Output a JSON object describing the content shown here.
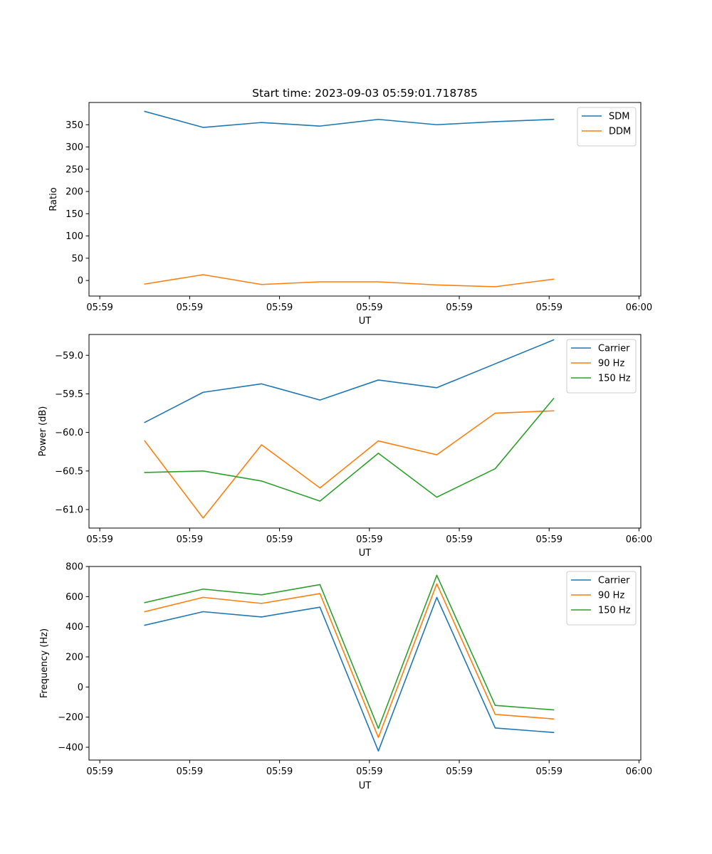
{
  "chart_data": [
    {
      "type": "line",
      "title": "Start time: 2023-09-03 05:59:01.718785",
      "xlabel": "UT",
      "ylabel": "Ratio",
      "x_ticks": [
        "05:59",
        "05:59",
        "05:59",
        "05:59",
        "05:59",
        "05:59",
        "06:00"
      ],
      "x_tick_positions": [
        0,
        1,
        2,
        3,
        4,
        5,
        6
      ],
      "xlim": [
        -0.12,
        6.02
      ],
      "x": [
        0.5,
        1.15,
        1.8,
        2.45,
        3.1,
        3.75,
        4.4,
        5.05
      ],
      "ylim": [
        -35,
        400
      ],
      "y_ticks": [
        0,
        50,
        100,
        150,
        200,
        250,
        300,
        350
      ],
      "legend": "top-right",
      "series": [
        {
          "name": "SDM",
          "color": "#1f77b4",
          "values": [
            380,
            344,
            355,
            347,
            362,
            350,
            357,
            362
          ]
        },
        {
          "name": "DDM",
          "color": "#ff7f0e",
          "values": [
            -8,
            13,
            -9,
            -3,
            -3,
            -10,
            -14,
            3
          ]
        }
      ]
    },
    {
      "type": "line",
      "title": "",
      "xlabel": "UT",
      "ylabel": "Power (dB)",
      "x_ticks": [
        "05:59",
        "05:59",
        "05:59",
        "05:59",
        "05:59",
        "05:59",
        "06:00"
      ],
      "x_tick_positions": [
        0,
        1,
        2,
        3,
        4,
        5,
        6
      ],
      "xlim": [
        -0.12,
        6.02
      ],
      "x": [
        0.5,
        1.15,
        1.8,
        2.45,
        3.1,
        3.75,
        4.4,
        5.05
      ],
      "ylim": [
        -61.24,
        -58.73
      ],
      "y_ticks": [
        -61.0,
        -60.5,
        -60.0,
        -59.5,
        -59.0
      ],
      "y_tick_labels": [
        "−61.0",
        "−60.5",
        "−60.0",
        "−59.5",
        "−59.0"
      ],
      "legend": "top-right",
      "series": [
        {
          "name": "Carrier",
          "color": "#1f77b4",
          "values": [
            -59.87,
            -59.48,
            -59.37,
            -59.58,
            -59.32,
            -59.42,
            -59.11,
            -58.8
          ]
        },
        {
          "name": "90 Hz",
          "color": "#ff7f0e",
          "values": [
            -60.11,
            -61.11,
            -60.16,
            -60.72,
            -60.11,
            -60.29,
            -59.75,
            -59.72
          ]
        },
        {
          "name": "150 Hz",
          "color": "#2ca02c",
          "values": [
            -60.52,
            -60.5,
            -60.63,
            -60.89,
            -60.27,
            -60.84,
            -60.47,
            -59.56
          ]
        }
      ]
    },
    {
      "type": "line",
      "title": "",
      "xlabel": "UT",
      "ylabel": "Frequency (Hz)",
      "x_ticks": [
        "05:59",
        "05:59",
        "05:59",
        "05:59",
        "05:59",
        "05:59",
        "06:00"
      ],
      "x_tick_positions": [
        0,
        1,
        2,
        3,
        4,
        5,
        6
      ],
      "xlim": [
        -0.12,
        6.02
      ],
      "x": [
        0.5,
        1.15,
        1.8,
        2.45,
        3.1,
        3.75,
        4.4,
        5.05
      ],
      "ylim": [
        -485,
        800
      ],
      "y_ticks": [
        -400,
        -200,
        0,
        200,
        400,
        600,
        800
      ],
      "y_tick_labels": [
        "−400",
        "−200",
        "0",
        "200",
        "400",
        "600",
        "800"
      ],
      "legend": "top-right",
      "series": [
        {
          "name": "Carrier",
          "color": "#1f77b4",
          "values": [
            410,
            500,
            465,
            530,
            -425,
            595,
            -272,
            -302
          ]
        },
        {
          "name": "90 Hz",
          "color": "#ff7f0e",
          "values": [
            500,
            595,
            555,
            620,
            -335,
            685,
            -182,
            -212
          ]
        },
        {
          "name": "150 Hz",
          "color": "#2ca02c",
          "values": [
            560,
            650,
            612,
            680,
            -275,
            742,
            -122,
            -152
          ]
        }
      ]
    }
  ]
}
